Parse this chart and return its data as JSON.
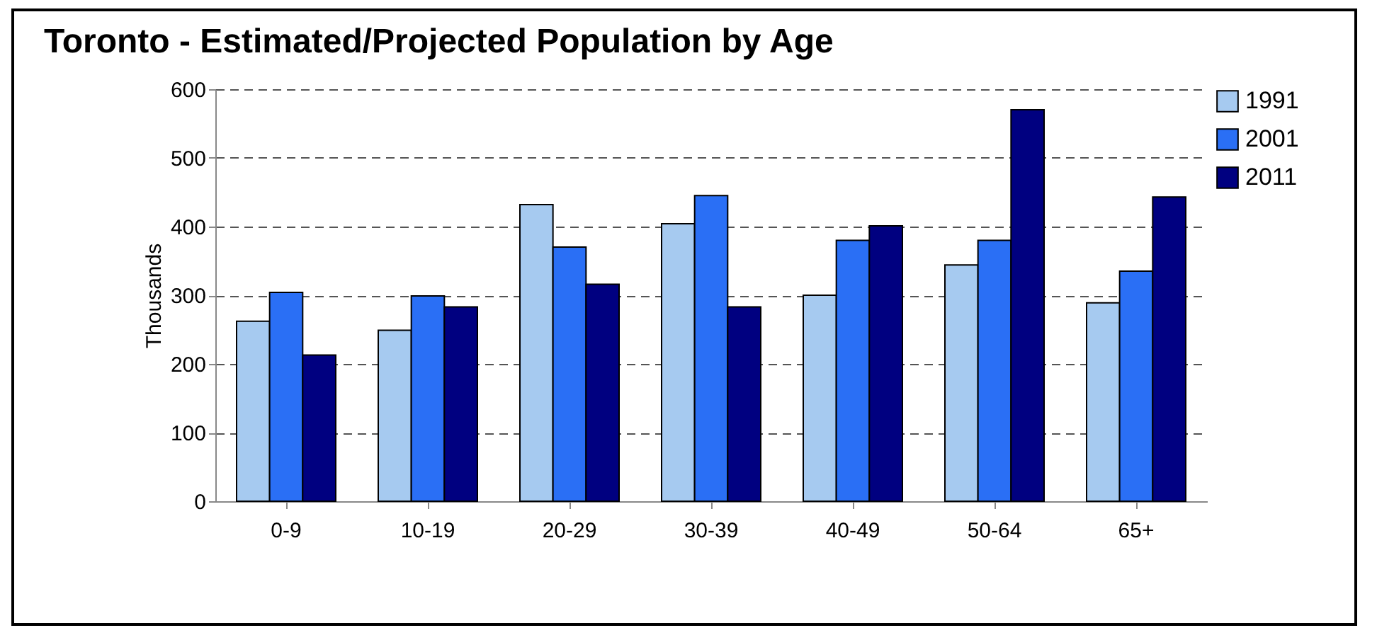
{
  "chart_data": {
    "type": "bar",
    "title": "Toronto - Estimated/Projected Population by Age",
    "ylabel": "Thousands",
    "categories": [
      "0-9",
      "10-19",
      "20-29",
      "30-39",
      "40-49",
      "50-64",
      "65+"
    ],
    "series": [
      {
        "name": "1991",
        "color": "#a6caf0",
        "values": [
          262,
          249,
          432,
          404,
          300,
          344,
          289
        ]
      },
      {
        "name": "2001",
        "color": "#2a6ff5",
        "values": [
          304,
          299,
          370,
          445,
          380,
          380,
          335
        ]
      },
      {
        "name": "2011",
        "color": "#000080",
        "values": [
          213,
          283,
          316,
          283,
          401,
          570,
          443
        ]
      }
    ],
    "ylim": [
      0,
      600
    ],
    "yticks": [
      0,
      100,
      200,
      300,
      400,
      500,
      600
    ],
    "grid": "y",
    "legend": "top right"
  }
}
